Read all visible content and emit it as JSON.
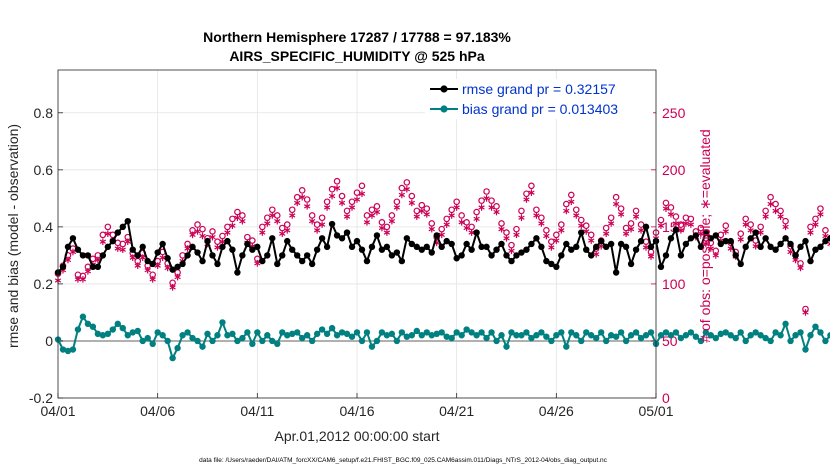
{
  "chart_data": {
    "type": "line",
    "title": "Northern Hemisphere 17287 / 17788 = 97.183%",
    "subtitle": "AIRS_SPECIFIC_HUMIDITY @ 525 hPa",
    "xlabel": "Apr.01,2012 00:00:00 start",
    "ylabel_left": "rmse and bias (model - observation)",
    "ylabel_right": "# of obs: o=possible; ∗=evaluated",
    "footnote": "data file: /Users/raeder/DAI/ATM_forcXX/CAM6_setup/f.e21.FHIST_BGC.f09_025.CAM6assim.011/Diags_NTrS_2012-04/obs_diag_output.nc",
    "x_ticks": [
      "04/01",
      "04/06",
      "04/11",
      "04/16",
      "04/21",
      "04/26",
      "05/01"
    ],
    "x_range": [
      0,
      30
    ],
    "ylim_left": [
      -0.2,
      0.95
    ],
    "y_ticks_left": [
      "-0.2",
      "0",
      "0.2",
      "0.4",
      "0.6",
      "0.8"
    ],
    "y_tick_values_left": [
      -0.2,
      0,
      0.2,
      0.4,
      0.6,
      0.8
    ],
    "ylim_right": [
      0,
      287.5
    ],
    "y_ticks_right": [
      "0",
      "50",
      "100",
      "150",
      "200",
      "250"
    ],
    "y_tick_values_right": [
      0,
      50,
      100,
      150,
      200,
      250
    ],
    "legend": [
      {
        "label": "rmse grand pr = 0.32157",
        "color": "#000000"
      },
      {
        "label": "bias grand pr = 0.013403",
        "color": "#008080"
      }
    ],
    "colors": {
      "rmse": "#000000",
      "bias": "#008080",
      "obs": "#cc0055",
      "zero_line": "#b0b0b0",
      "legend_text": "#0033cc"
    },
    "step_days": 0.25,
    "series": [
      {
        "name": "rmse",
        "axis": "left",
        "values": [
          0.24,
          0.26,
          0.33,
          0.36,
          0.32,
          0.3,
          0.3,
          0.26,
          0.26,
          0.3,
          0.33,
          0.35,
          0.38,
          0.4,
          0.42,
          0.32,
          0.3,
          0.33,
          0.28,
          0.27,
          0.31,
          0.34,
          0.29,
          0.25,
          0.26,
          0.27,
          0.3,
          0.33,
          0.31,
          0.28,
          0.35,
          0.3,
          0.27,
          0.33,
          0.35,
          0.32,
          0.24,
          0.3,
          0.34,
          0.32,
          0.33,
          0.28,
          0.3,
          0.36,
          0.27,
          0.3,
          0.35,
          0.32,
          0.3,
          0.28,
          0.3,
          0.27,
          0.32,
          0.36,
          0.33,
          0.41,
          0.37,
          0.36,
          0.38,
          0.33,
          0.35,
          0.32,
          0.28,
          0.33,
          0.37,
          0.32,
          0.33,
          0.3,
          0.31,
          0.28,
          0.36,
          0.34,
          0.33,
          0.32,
          0.33,
          0.31,
          0.37,
          0.33,
          0.35,
          0.34,
          0.29,
          0.3,
          0.34,
          0.32,
          0.38,
          0.33,
          0.33,
          0.3,
          0.32,
          0.34,
          0.3,
          0.28,
          0.3,
          0.31,
          0.32,
          0.34,
          0.36,
          0.33,
          0.28,
          0.27,
          0.26,
          0.3,
          0.34,
          0.32,
          0.33,
          0.38,
          0.32,
          0.3,
          0.33,
          0.35,
          0.33,
          0.34,
          0.24,
          0.34,
          0.33,
          0.27,
          0.32,
          0.35,
          0.4,
          0.33,
          0.35,
          0.26,
          0.3,
          0.36,
          0.39,
          0.3,
          0.34,
          0.36,
          0.37,
          0.33,
          0.38,
          0.36,
          0.37,
          0.34,
          0.35,
          0.35,
          0.3,
          0.27,
          0.33,
          0.36,
          0.38,
          0.33,
          0.36,
          0.33,
          0.32,
          0.34,
          0.36,
          0.34,
          0.3,
          0.33,
          0.35,
          0.28,
          0.32,
          0.33,
          0.35,
          0.36,
          0.37,
          0.33,
          0.34,
          0.34,
          0.35,
          0.44,
          0.45,
          0.3,
          0.26,
          0.2,
          0.34,
          0.35,
          0.35,
          0.33,
          0.34,
          0.3,
          0.32,
          0.34,
          0.3,
          0.32,
          0.36,
          0.38,
          0.4,
          0.36,
          0.33,
          0.36,
          0.39,
          0.34,
          0.34,
          0.36,
          0.33
        ]
      },
      {
        "name": "bias",
        "axis": "left",
        "values": [
          0.005,
          -0.03,
          -0.035,
          -0.03,
          0.04,
          0.085,
          0.06,
          0.05,
          0.025,
          0.02,
          0.025,
          0.04,
          0.06,
          0.045,
          0.02,
          0.03,
          0.035,
          0.0,
          0.01,
          -0.01,
          0.03,
          0.02,
          0.0,
          -0.06,
          -0.025,
          0.02,
          0.03,
          0.01,
          0.0,
          -0.02,
          0.025,
          0.0,
          0.02,
          0.065,
          0.02,
          0.025,
          0.0,
          0.01,
          0.03,
          -0.01,
          0.03,
          0.0,
          0.02,
          0.0,
          -0.01,
          0.03,
          0.02,
          0.025,
          0.03,
          0.01,
          0.02,
          0.0,
          0.025,
          0.04,
          0.025,
          0.045,
          0.02,
          0.03,
          0.025,
          0.015,
          0.03,
          0.0,
          0.03,
          -0.02,
          0.0,
          0.03,
          0.02,
          0.025,
          0.0,
          0.03,
          0.015,
          0.02,
          0.035,
          0.02,
          0.03,
          0.02,
          0.025,
          0.03,
          0.015,
          0.01,
          0.03,
          0.02,
          0.04,
          0.03,
          0.02,
          0.03,
          0.01,
          0.03,
          0.0,
          0.02,
          -0.02,
          0.03,
          0.02,
          0.02,
          0.03,
          0.01,
          0.02,
          0.03,
          0.015,
          0.0,
          0.02,
          0.03,
          -0.02,
          0.03,
          0.02,
          0.0,
          0.03,
          0.02,
          0.01,
          0.03,
          0.0,
          0.02,
          0.015,
          0.03,
          0.0,
          0.02,
          0.03,
          0.01,
          0.02,
          0.03,
          -0.01,
          0.02,
          0.03,
          0.02,
          0.03,
          0.01,
          0.02,
          0.03,
          0.015,
          0.0,
          0.03,
          0.02,
          0.01,
          0.025,
          0.03,
          0.02,
          0.01,
          0.03,
          0.0,
          0.02,
          0.03,
          0.02,
          0.01,
          0.0,
          0.03,
          0.02,
          0.06,
          0.0,
          0.02,
          0.03,
          -0.03,
          0.02,
          0.05,
          0.03,
          0.0,
          0.02,
          0.015,
          0.03,
          0.0,
          0.035,
          0.03,
          0.02,
          0.05,
          0.035,
          -0.02,
          0.045,
          0.04,
          0.035,
          0.03,
          0.04,
          0.035,
          0.02,
          0.03,
          0.05,
          0.06,
          0.06,
          0.055,
          0.05,
          0.04,
          0.03,
          0.03,
          0.03,
          0.03,
          0.025
        ]
      },
      {
        "name": "possible",
        "axis": "right",
        "marker": "o",
        "values": [
          109,
          116,
          125,
          131,
          108,
          107,
          115,
          122,
          125,
          143,
          150,
          143,
          136,
          135,
          141,
          127,
          120,
          127,
          116,
          108,
          120,
          128,
          118,
          101,
          110,
          125,
          135,
          147,
          152,
          148,
          140,
          146,
          137,
          142,
          150,
          157,
          163,
          160,
          141,
          138,
          122,
          150,
          158,
          165,
          160,
          149,
          152,
          165,
          176,
          182,
          174,
          160,
          152,
          158,
          172,
          183,
          190,
          177,
          164,
          172,
          180,
          186,
          160,
          165,
          168,
          154,
          150,
          160,
          172,
          184,
          189,
          177,
          164,
          169,
          166,
          153,
          141,
          148,
          157,
          165,
          172,
          160,
          154,
          150,
          163,
          173,
          181,
          173,
          168,
          153,
          145,
          134,
          148,
          164,
          179,
          186,
          165,
          158,
          147,
          137,
          143,
          152,
          170,
          178,
          165,
          156,
          151,
          143,
          131,
          138,
          149,
          158,
          176,
          166,
          149,
          153,
          164,
          152,
          137,
          128,
          145,
          156,
          171,
          167,
          159,
          152,
          158,
          157,
          146,
          149,
          140,
          136,
          129,
          143,
          151,
          136,
          128,
          144,
          157,
          152,
          138,
          150,
          164,
          176,
          170,
          164,
          155,
          133,
          125,
          118,
          78,
          150,
          157,
          166,
          147,
          140,
          142,
          156,
          150,
          166,
          136,
          128,
          119,
          132,
          157,
          150,
          120,
          154,
          163,
          150,
          112,
          97,
          127,
          138,
          145,
          150,
          140,
          122,
          132,
          147,
          128,
          135,
          96,
          143,
          142,
          118,
          0
        ]
      },
      {
        "name": "evaluated",
        "axis": "right",
        "marker": "*",
        "values": [
          103,
          112,
          121,
          128,
          104,
          104,
          111,
          117,
          121,
          137,
          144,
          138,
          131,
          130,
          137,
          123,
          116,
          123,
          112,
          104,
          116,
          123,
          114,
          97,
          106,
          120,
          131,
          143,
          146,
          142,
          135,
          141,
          132,
          137,
          145,
          151,
          158,
          155,
          136,
          133,
          118,
          145,
          153,
          160,
          155,
          144,
          147,
          160,
          171,
          176,
          168,
          155,
          147,
          152,
          167,
          177,
          184,
          171,
          159,
          167,
          174,
          179,
          154,
          160,
          163,
          149,
          145,
          155,
          167,
          178,
          183,
          171,
          159,
          164,
          161,
          148,
          136,
          143,
          152,
          160,
          167,
          154,
          149,
          145,
          157,
          167,
          175,
          167,
          163,
          148,
          140,
          129,
          143,
          158,
          174,
          180,
          160,
          153,
          142,
          132,
          138,
          147,
          164,
          172,
          160,
          151,
          146,
          138,
          126,
          133,
          144,
          153,
          170,
          161,
          144,
          148,
          159,
          147,
          132,
          124,
          140,
          151,
          166,
          161,
          153,
          147,
          153,
          152,
          141,
          144,
          135,
          131,
          125,
          138,
          146,
          131,
          124,
          139,
          152,
          147,
          133,
          145,
          159,
          170,
          164,
          159,
          150,
          128,
          121,
          114,
          75,
          145,
          152,
          161,
          142,
          135,
          137,
          151,
          145,
          161,
          131,
          124,
          115,
          127,
          152,
          145,
          116,
          149,
          158,
          145,
          108,
          94,
          122,
          133,
          140,
          145,
          135,
          118,
          127,
          142,
          124,
          130,
          93,
          138,
          137,
          114,
          0
        ]
      }
    ]
  }
}
